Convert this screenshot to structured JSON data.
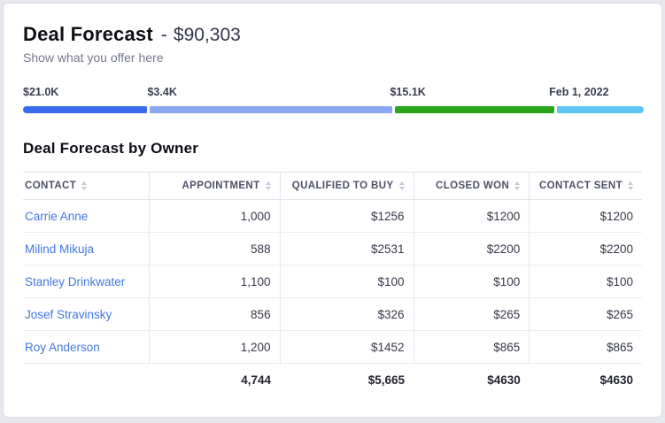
{
  "card": {
    "title": "Deal Forecast",
    "title_separator": "-",
    "amount": "$90,303",
    "subtitle": "Show what you offer here"
  },
  "colors": {
    "segment_blue": "#3b6cf0",
    "segment_light_blue": "#8aa7f2",
    "segment_green": "#2aa51c",
    "segment_sky": "#5ec6f2",
    "link_blue": "#4178e2"
  },
  "forecast_bar": {
    "segments": [
      {
        "label": "$21.0K",
        "color": "#3b6cf0",
        "width_pct": 20.1
      },
      {
        "label": "$3.4K",
        "color": "#8aa7f2",
        "width_pct": 39.2
      },
      {
        "label": "$15.1K",
        "color": "#2aa51c",
        "width_pct": 25.7
      },
      {
        "label": "Feb 1, 2022",
        "color": "#5ec6f2",
        "width_pct": 14.0
      }
    ]
  },
  "table": {
    "title": "Deal Forecast by Owner",
    "columns": [
      {
        "label": "CONTACT",
        "align": "left"
      },
      {
        "label": "APPOINTMENT",
        "align": "right"
      },
      {
        "label": "QUALIFIED TO BUY",
        "align": "right"
      },
      {
        "label": "CLOSED WON",
        "align": "right"
      },
      {
        "label": "CONTACT SENT",
        "align": "right"
      }
    ],
    "rows": [
      {
        "contact": "Carrie Anne",
        "appointment": "1,000",
        "qualified_to_buy": "$1256",
        "closed_won": "$1200",
        "contact_sent": "$1200"
      },
      {
        "contact": "Milind Mikuja",
        "appointment": "588",
        "qualified_to_buy": "$2531",
        "closed_won": "$2200",
        "contact_sent": "$2200"
      },
      {
        "contact": "Stanley Drinkwater",
        "appointment": "1,100",
        "qualified_to_buy": "$100",
        "closed_won": "$100",
        "contact_sent": "$100"
      },
      {
        "contact": "Josef Stravinsky",
        "appointment": "856",
        "qualified_to_buy": "$326",
        "closed_won": "$265",
        "contact_sent": "$265"
      },
      {
        "contact": "Roy Anderson",
        "appointment": "1,200",
        "qualified_to_buy": "$1452",
        "closed_won": "$865",
        "contact_sent": "$865"
      }
    ],
    "totals": {
      "appointment": "4,744",
      "qualified_to_buy": "$5,665",
      "closed_won": "$4630",
      "contact_sent": "$4630"
    }
  }
}
